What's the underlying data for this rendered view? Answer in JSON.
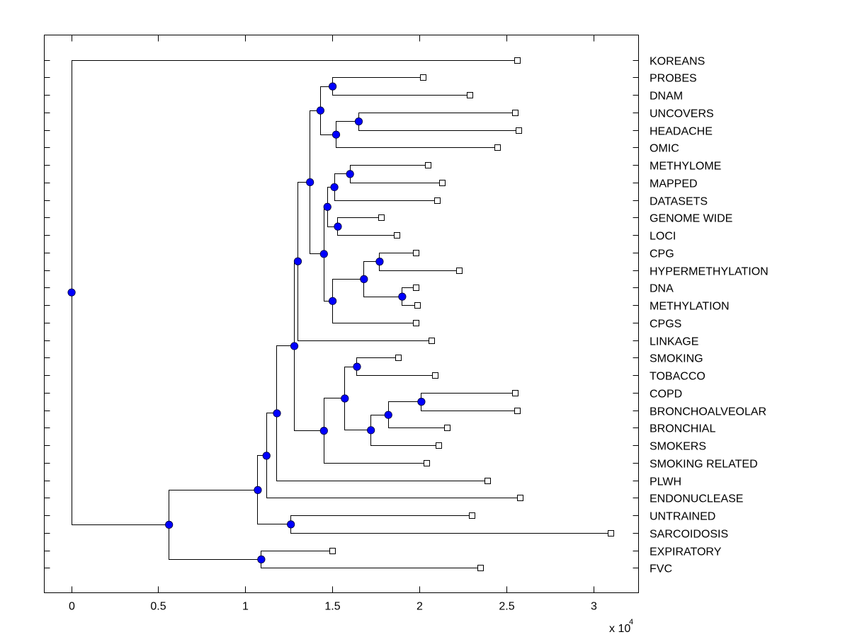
{
  "chart_data": {
    "type": "dendrogram",
    "title": "",
    "xlabel": "",
    "ylabel": "",
    "x_multiplier_label": "x 10",
    "x_multiplier_exponent": "4",
    "xlim": [
      -0.155,
      3.26
    ],
    "x_ticks": [
      0,
      0.5,
      1,
      1.5,
      2,
      2.5,
      3
    ],
    "x_tick_labels": [
      "0",
      "0.5",
      "1",
      "1.5",
      "2",
      "2.5",
      "3"
    ],
    "grid": false,
    "colors": {
      "node_fill": "#0000ff",
      "line": "#000000",
      "leaf_fill": "#ffffff"
    },
    "leaves": [
      "KOREANS",
      "PROBES",
      "DNAM",
      "UNCOVERS",
      "HEADACHE",
      "OMIC",
      "METHYLOME",
      "MAPPED",
      "DATASETS",
      "GENOME WIDE",
      "LOCI",
      "CPG",
      "HYPERMETHYLATION",
      "DNA",
      "METHYLATION",
      "CPGS",
      "LINKAGE",
      "SMOKING",
      "TOBACCO",
      "COPD",
      "BRONCHOALVEOLAR",
      "BRONCHIAL",
      "SMOKERS",
      "SMOKING RELATED",
      "PLWH",
      "ENDONUCLEASE",
      "UNTRAINED",
      "SARCOIDOSIS",
      "EXPIRATORY",
      "FVC"
    ],
    "tree": {
      "x": 0.0,
      "children": [
        {
          "leaf": "KOREANS",
          "x": 2.56
        },
        {
          "x": 0.56,
          "children": [
            {
              "x": 1.07,
              "children": [
                {
                  "x": 1.12,
                  "children": [
                    {
                      "x": 1.18,
                      "children": [
                        {
                          "x": 1.28,
                          "children": [
                            {
                              "x": 1.3,
                              "children": [
                                {
                                  "x": 1.37,
                                  "children": [
                                    {
                                      "x": 1.43,
                                      "children": [
                                        {
                                          "x": 1.5,
                                          "children": [
                                            {
                                              "leaf": "PROBES",
                                              "x": 2.02
                                            },
                                            {
                                              "leaf": "DNAM",
                                              "x": 2.29
                                            }
                                          ]
                                        },
                                        {
                                          "x": 1.52,
                                          "children": [
                                            {
                                              "x": 1.65,
                                              "children": [
                                                {
                                                  "leaf": "UNCOVERS",
                                                  "x": 2.55
                                                },
                                                {
                                                  "leaf": "HEADACHE",
                                                  "x": 2.57
                                                }
                                              ]
                                            },
                                            {
                                              "leaf": "OMIC",
                                              "x": 2.45
                                            }
                                          ]
                                        }
                                      ]
                                    },
                                    {
                                      "x": 1.45,
                                      "children": [
                                        {
                                          "x": 1.47,
                                          "children": [
                                            {
                                              "x": 1.51,
                                              "children": [
                                                {
                                                  "x": 1.6,
                                                  "children": [
                                                    {
                                                      "leaf": "METHYLOME",
                                                      "x": 2.05
                                                    },
                                                    {
                                                      "leaf": "MAPPED",
                                                      "x": 2.13
                                                    }
                                                  ]
                                                },
                                                {
                                                  "leaf": "DATASETS",
                                                  "x": 2.1
                                                }
                                              ]
                                            },
                                            {
                                              "x": 1.53,
                                              "children": [
                                                {
                                                  "leaf": "GENOME WIDE",
                                                  "x": 1.78
                                                },
                                                {
                                                  "leaf": "LOCI",
                                                  "x": 1.87
                                                }
                                              ]
                                            }
                                          ]
                                        },
                                        {
                                          "x": 1.5,
                                          "children": [
                                            {
                                              "x": 1.68,
                                              "children": [
                                                {
                                                  "x": 1.77,
                                                  "children": [
                                                    {
                                                      "leaf": "CPG",
                                                      "x": 1.98
                                                    },
                                                    {
                                                      "leaf": "HYPERMETHYLATION",
                                                      "x": 2.23
                                                    }
                                                  ]
                                                },
                                                {
                                                  "x": 1.9,
                                                  "children": [
                                                    {
                                                      "leaf": "DNA",
                                                      "x": 1.98
                                                    },
                                                    {
                                                      "leaf": "METHYLATION",
                                                      "x": 1.99
                                                    }
                                                  ]
                                                }
                                              ]
                                            },
                                            {
                                              "leaf": "CPGS",
                                              "x": 1.98
                                            }
                                          ]
                                        }
                                      ]
                                    }
                                  ]
                                },
                                {
                                  "leaf": "LINKAGE",
                                  "x": 2.07
                                }
                              ]
                            },
                            {
                              "x": 1.45,
                              "children": [
                                {
                                  "x": 1.57,
                                  "children": [
                                    {
                                      "x": 1.64,
                                      "children": [
                                        {
                                          "leaf": "SMOKING",
                                          "x": 1.88
                                        },
                                        {
                                          "leaf": "TOBACCO",
                                          "x": 2.09
                                        }
                                      ]
                                    },
                                    {
                                      "x": 1.72,
                                      "children": [
                                        {
                                          "x": 1.82,
                                          "children": [
                                            {
                                              "x": 2.01,
                                              "children": [
                                                {
                                                  "leaf": "COPD",
                                                  "x": 2.55
                                                },
                                                {
                                                  "leaf": "BRONCHOALVEOLAR",
                                                  "x": 2.56
                                                }
                                              ]
                                            },
                                            {
                                              "leaf": "BRONCHIAL",
                                              "x": 2.16
                                            }
                                          ]
                                        },
                                        {
                                          "leaf": "SMOKERS",
                                          "x": 2.11
                                        }
                                      ]
                                    }
                                  ]
                                },
                                {
                                  "leaf": "SMOKING RELATED",
                                  "x": 2.04
                                }
                              ]
                            }
                          ]
                        },
                        {
                          "leaf": "PLWH",
                          "x": 2.39
                        }
                      ]
                    },
                    {
                      "leaf": "ENDONUCLEASE",
                      "x": 2.58
                    }
                  ]
                },
                {
                  "x": 1.26,
                  "children": [
                    {
                      "leaf": "UNTRAINED",
                      "x": 2.3
                    },
                    {
                      "leaf": "SARCOIDOSIS",
                      "x": 3.1
                    }
                  ]
                }
              ]
            },
            {
              "x": 1.09,
              "children": [
                {
                  "leaf": "EXPIRATORY",
                  "x": 1.5
                },
                {
                  "leaf": "FVC",
                  "x": 2.35
                }
              ]
            }
          ]
        }
      ]
    }
  }
}
